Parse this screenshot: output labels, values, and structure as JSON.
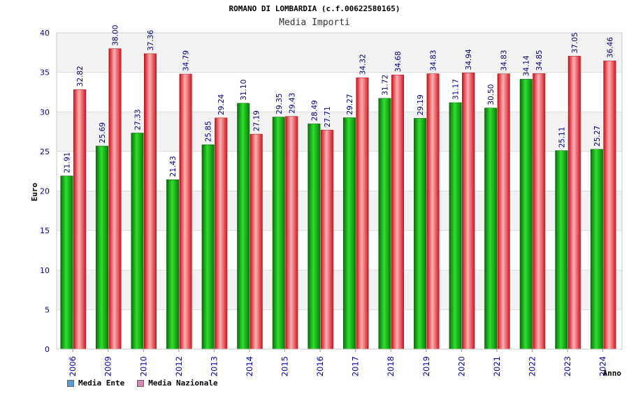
{
  "chart_data": {
    "type": "bar",
    "title": "ROMANO DI LOMBARDIA (c.f.00622580165)",
    "subtitle": "Media Importi",
    "xlabel": "Anno",
    "ylabel": "Euro",
    "ylim": [
      0,
      40
    ],
    "yticks": [
      "0",
      "5",
      "10",
      "15",
      "20",
      "25",
      "30",
      "35",
      "40"
    ],
    "categories": [
      "2006",
      "2009",
      "2010",
      "2012",
      "2013",
      "2014",
      "2015",
      "2016",
      "2017",
      "2018",
      "2019",
      "2020",
      "2021",
      "2022",
      "2023",
      "2024"
    ],
    "series": [
      {
        "name": "Media Ente",
        "color": "#1f9a1f",
        "legend_color": "#5b9bd5",
        "values": [
          21.91,
          25.69,
          27.33,
          21.43,
          25.85,
          31.1,
          29.35,
          28.49,
          29.27,
          31.72,
          29.19,
          31.17,
          30.5,
          34.14,
          25.11,
          25.27
        ],
        "labels": [
          "21.91",
          "25.69",
          "27.33",
          "21.43",
          "25.85",
          "31.10",
          "29.35",
          "28.49",
          "29.27",
          "31.72",
          "29.19",
          "31.17",
          "30.50",
          "34.14",
          "25.11",
          "25.27"
        ]
      },
      {
        "name": "Media Nazionale",
        "color": "#e8232d",
        "legend_color": "#d884b0",
        "values": [
          32.82,
          38.0,
          37.36,
          34.79,
          29.24,
          27.19,
          29.43,
          27.71,
          34.32,
          34.68,
          34.83,
          34.94,
          34.83,
          34.85,
          37.05,
          36.46
        ],
        "labels": [
          "32.82",
          "38.00",
          "37.36",
          "34.79",
          "29.24",
          "27.19",
          "29.43",
          "27.71",
          "34.32",
          "34.68",
          "34.83",
          "34.94",
          "34.83",
          "34.85",
          "37.05",
          "36.46"
        ]
      }
    ],
    "legend_position": "bottom-left",
    "grid": true
  }
}
